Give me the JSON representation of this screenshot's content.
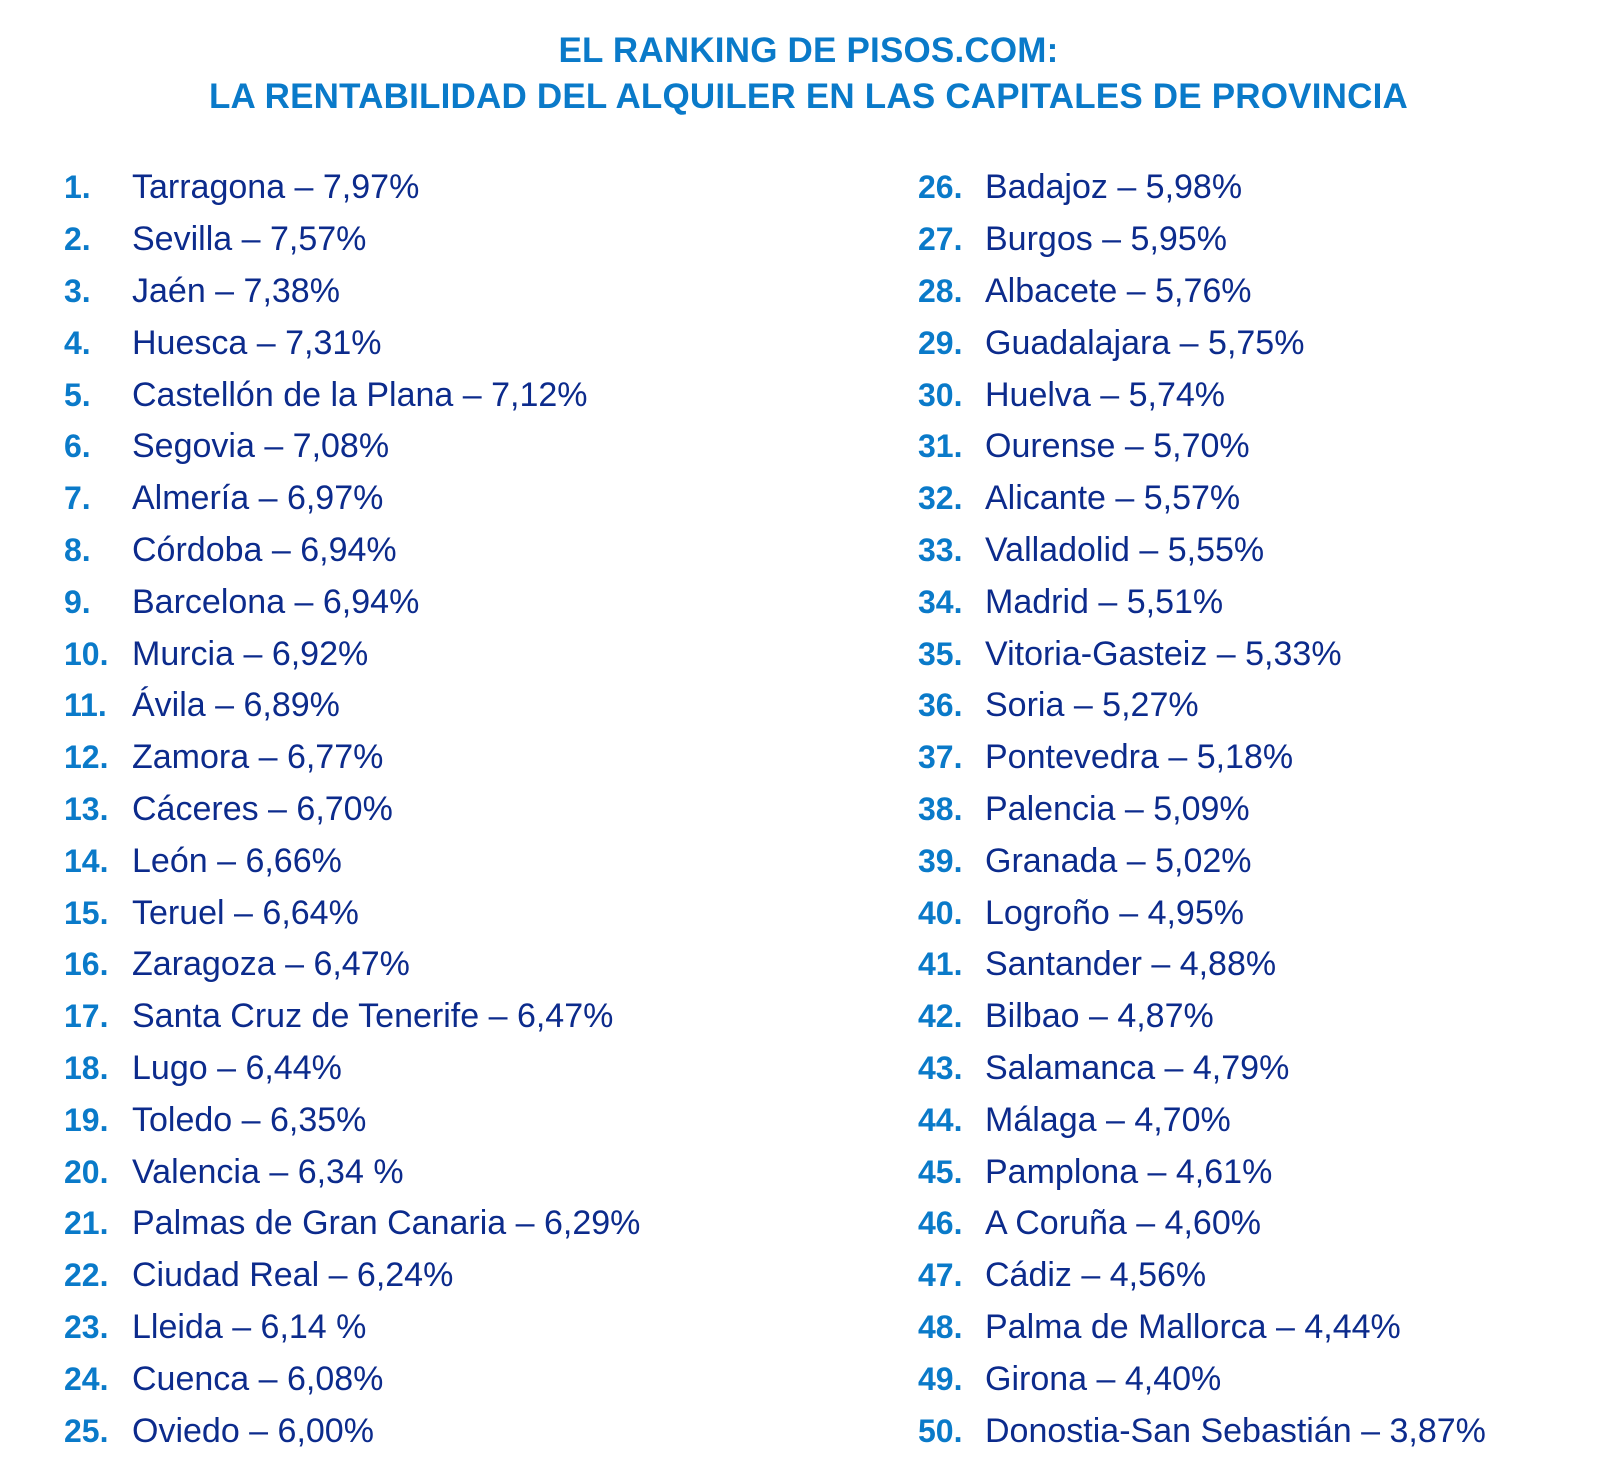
{
  "header": {
    "title_line1": "EL RANKING DE PISOS.COM:",
    "title_line2": "LA RENTABILIDAD DEL ALQUILER EN LAS CAPITALES DE PROVINCIA"
  },
  "ranking": {
    "left": [
      {
        "rank": "1.",
        "text": "Tarragona – 7,97%"
      },
      {
        "rank": "2.",
        "text": "Sevilla – 7,57%"
      },
      {
        "rank": "3.",
        "text": "Jaén – 7,38%"
      },
      {
        "rank": "4.",
        "text": "Huesca – 7,31%"
      },
      {
        "rank": "5.",
        "text": "Castellón de la Plana – 7,12%"
      },
      {
        "rank": "6.",
        "text": "Segovia – 7,08%"
      },
      {
        "rank": "7.",
        "text": "Almería – 6,97%"
      },
      {
        "rank": "8.",
        "text": "Córdoba – 6,94%"
      },
      {
        "rank": "9.",
        "text": "Barcelona – 6,94%"
      },
      {
        "rank": "10.",
        "text": "Murcia – 6,92%"
      },
      {
        "rank": "11.",
        "text": "Ávila – 6,89%"
      },
      {
        "rank": "12.",
        "text": "Zamora – 6,77%"
      },
      {
        "rank": "13.",
        "text": "Cáceres – 6,70%"
      },
      {
        "rank": "14.",
        "text": "León – 6,66%"
      },
      {
        "rank": "15.",
        "text": "Teruel – 6,64%"
      },
      {
        "rank": "16.",
        "text": "Zaragoza – 6,47%"
      },
      {
        "rank": "17.",
        "text": "Santa Cruz de Tenerife – 6,47%"
      },
      {
        "rank": "18.",
        "text": "Lugo – 6,44%"
      },
      {
        "rank": "19.",
        "text": "Toledo – 6,35%"
      },
      {
        "rank": "20.",
        "text": "Valencia – 6,34 %"
      },
      {
        "rank": "21.",
        "text": "Palmas de Gran Canaria – 6,29%"
      },
      {
        "rank": "22.",
        "text": "Ciudad Real – 6,24%"
      },
      {
        "rank": "23.",
        "text": "Lleida – 6,14 %"
      },
      {
        "rank": "24.",
        "text": "Cuenca – 6,08%"
      },
      {
        "rank": "25.",
        "text": "Oviedo – 6,00%"
      }
    ],
    "right": [
      {
        "rank": "26.",
        "text": "Badajoz – 5,98%"
      },
      {
        "rank": "27.",
        "text": "Burgos – 5,95%"
      },
      {
        "rank": "28.",
        "text": "Albacete – 5,76%"
      },
      {
        "rank": "29.",
        "text": "Guadalajara – 5,75%"
      },
      {
        "rank": "30.",
        "text": "Huelva – 5,74%"
      },
      {
        "rank": "31.",
        "text": "Ourense – 5,70%"
      },
      {
        "rank": "32.",
        "text": "Alicante – 5,57%"
      },
      {
        "rank": "33.",
        "text": "Valladolid – 5,55%"
      },
      {
        "rank": "34.",
        "text": "Madrid – 5,51%"
      },
      {
        "rank": "35.",
        "text": "Vitoria-Gasteiz – 5,33%"
      },
      {
        "rank": "36.",
        "text": "Soria – 5,27%"
      },
      {
        "rank": "37.",
        "text": "Pontevedra – 5,18%"
      },
      {
        "rank": "38.",
        "text": "Palencia – 5,09%"
      },
      {
        "rank": "39.",
        "text": "Granada – 5,02%"
      },
      {
        "rank": "40.",
        "text": "Logroño – 4,95%"
      },
      {
        "rank": "41.",
        "text": "Santander – 4,88%"
      },
      {
        "rank": "42.",
        "text": "Bilbao – 4,87%"
      },
      {
        "rank": "43.",
        "text": "Salamanca – 4,79%"
      },
      {
        "rank": "44.",
        "text": "Málaga – 4,70%"
      },
      {
        "rank": "45.",
        "text": "Pamplona – 4,61%"
      },
      {
        "rank": "46.",
        "text": "A Coruña – 4,60%"
      },
      {
        "rank": "47.",
        "text": "Cádiz – 4,56%"
      },
      {
        "rank": "48.",
        "text": "Palma de Mallorca – 4,44%"
      },
      {
        "rank": "49.",
        "text": "Girona – 4,40%"
      },
      {
        "rank": "50.",
        "text": "Donostia-San Sebastián – 3,87%"
      }
    ]
  },
  "colors": {
    "title": "#0a7ac9",
    "rank_number": "#0a7ac9",
    "entry_text": "#0c2b8c"
  }
}
